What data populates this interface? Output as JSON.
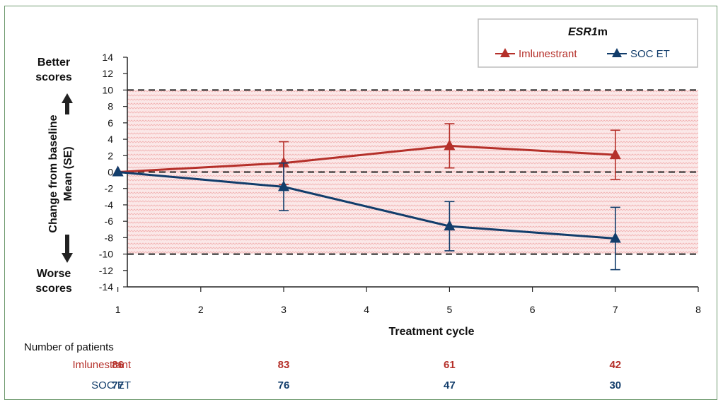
{
  "chart_data": {
    "type": "line",
    "xlabel": "Treatment cycle",
    "ylabel_lines": [
      "Change from baseline",
      "Mean (SE)"
    ],
    "better_label": [
      "Better",
      "scores"
    ],
    "worse_label": [
      "Worse",
      "scores"
    ],
    "xlim": [
      0.5,
      8
    ],
    "ylim": [
      -14,
      14
    ],
    "x_ticks": [
      1,
      2,
      3,
      4,
      5,
      6,
      7,
      8
    ],
    "y_ticks": [
      14,
      12,
      10,
      8,
      6,
      4,
      2,
      0,
      -2,
      -4,
      -6,
      -8,
      -10,
      -12,
      -14
    ],
    "reference_lines": [
      10,
      0,
      -10
    ],
    "shaded_band": [
      -10,
      10
    ],
    "legend_title": "ESR1m",
    "legend_title_italic": "ESR1",
    "legend_title_rest": "m",
    "legend_position": "top-right",
    "series": [
      {
        "name": "Imlunestrant",
        "color": "#b5302a",
        "x": [
          1,
          3,
          5,
          7
        ],
        "y": [
          0,
          1.1,
          3.2,
          2.1
        ],
        "err": [
          0,
          2.6,
          2.7,
          3.0
        ]
      },
      {
        "name": "SOC ET",
        "color": "#123d6b",
        "x": [
          1,
          3,
          5,
          7
        ],
        "y": [
          0,
          -1.8,
          -6.6,
          -8.1
        ],
        "err": [
          0,
          2.9,
          3.0,
          3.8
        ]
      }
    ]
  },
  "patients_table": {
    "title": "Number of patients",
    "rows": [
      {
        "name": "Imlunestrant",
        "color": "#b5302a",
        "counts": [
          "86",
          "83",
          "61",
          "42"
        ]
      },
      {
        "name": "SOC ET",
        "color": "#123d6b",
        "counts": [
          "77",
          "76",
          "47",
          "30"
        ]
      }
    ]
  }
}
